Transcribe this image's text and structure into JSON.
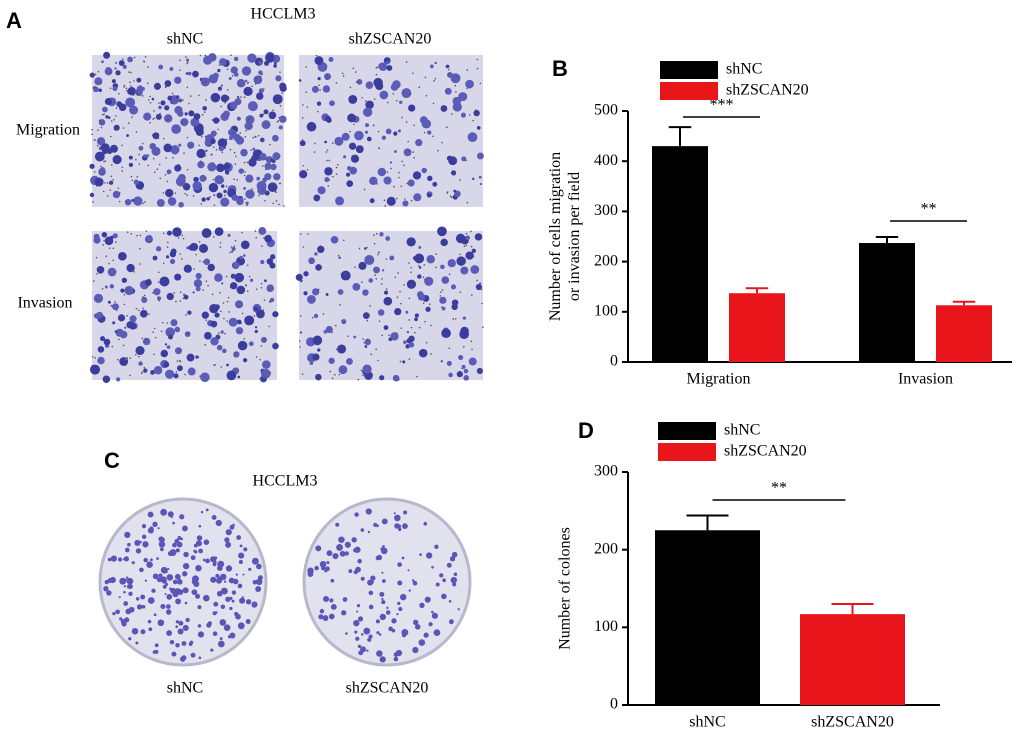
{
  "panel_a": {
    "label": "A",
    "cell_line": "HCCLM3",
    "columns": [
      "shNC",
      "shZSCAN20"
    ],
    "rows": [
      "Migration",
      "Invasion"
    ]
  },
  "panel_c": {
    "label": "C",
    "cell_line": "HCCLM3",
    "columns": [
      "shNC",
      "shZSCAN20"
    ]
  },
  "chart_data": [
    {
      "type": "bar",
      "label": "B",
      "ylabel": [
        "Number of cells migration",
        "or invasion per field"
      ],
      "categories": [
        "Migration",
        "Invasion"
      ],
      "series": [
        {
          "name": "shNC",
          "color": "#000000",
          "values": [
            430,
            237
          ],
          "errors": [
            38,
            12
          ]
        },
        {
          "name": "shZSCAN20",
          "color": "#e8161b",
          "values": [
            137,
            113
          ],
          "errors": [
            10,
            7
          ]
        }
      ],
      "significance": [
        "***",
        "**"
      ],
      "ylim": [
        0,
        500
      ],
      "yticks": [
        0,
        100,
        200,
        300,
        400,
        500
      ]
    },
    {
      "type": "bar",
      "label": "D",
      "ylabel": [
        "Number of colones"
      ],
      "categories": [
        "shNC",
        "shZSCAN20"
      ],
      "values": [
        225,
        117
      ],
      "errors": [
        19,
        13
      ],
      "colors": [
        "#000000",
        "#e8161b"
      ],
      "significance": [
        "**"
      ],
      "ylim": [
        0,
        300
      ],
      "yticks": [
        0,
        100,
        200,
        300
      ]
    }
  ]
}
